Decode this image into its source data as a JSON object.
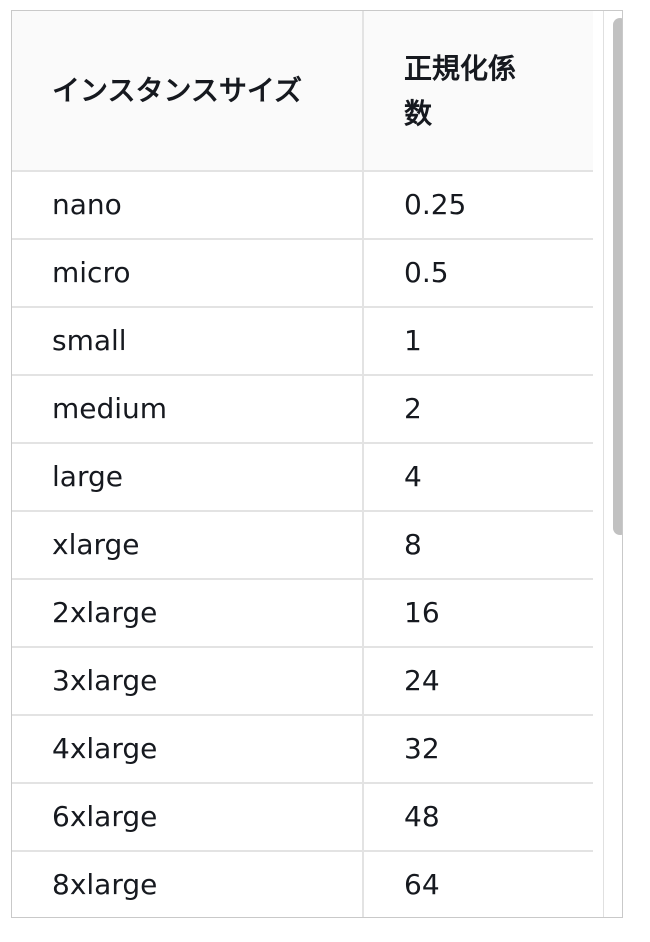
{
  "table": {
    "headers": {
      "size": "インスタンスサイズ",
      "factor": "正規化係数"
    },
    "rows": [
      {
        "size": "nano",
        "factor": "0.25"
      },
      {
        "size": "micro",
        "factor": "0.5"
      },
      {
        "size": "small",
        "factor": "1"
      },
      {
        "size": "medium",
        "factor": "2"
      },
      {
        "size": "large",
        "factor": "4"
      },
      {
        "size": "xlarge",
        "factor": "8"
      },
      {
        "size": "2xlarge",
        "factor": "16"
      },
      {
        "size": "3xlarge",
        "factor": "24"
      },
      {
        "size": "4xlarge",
        "factor": "32"
      },
      {
        "size": "6xlarge",
        "factor": "48"
      },
      {
        "size": "8xlarge",
        "factor": "64"
      },
      {
        "size": "",
        "factor": ""
      }
    ]
  },
  "scrollbar": {
    "position_fraction": 0.0,
    "visible_fraction": 0.58
  }
}
